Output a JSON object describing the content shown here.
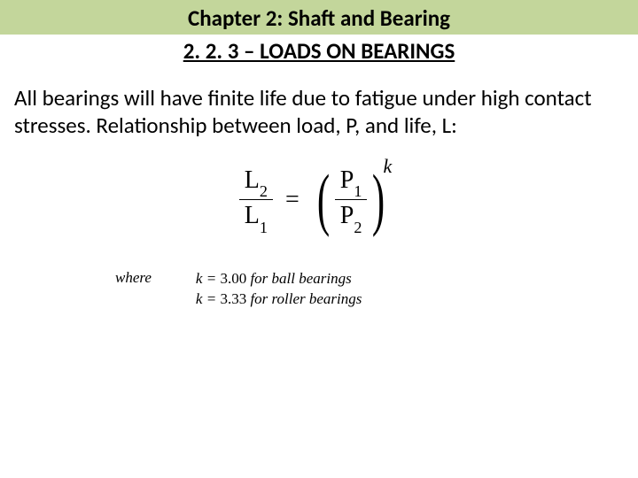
{
  "header": {
    "chapter_title": "Chapter 2:  Shaft and Bearing",
    "section_title": "2. 2. 3 – LOADS ON BEARINGS"
  },
  "body": {
    "paragraph": "All bearings will have finite life due to fatigue under high contact stresses. Relationship between load, P, and life, L:"
  },
  "equation": {
    "left_num": "L",
    "left_num_sub": "2",
    "left_den": "L",
    "left_den_sub": "1",
    "right_num": "P",
    "right_num_sub": "1",
    "right_den": "P",
    "right_den_sub": "2",
    "exponent": "k",
    "equals": "="
  },
  "where": {
    "label": "where",
    "line1_k": "k = ",
    "line1_val": "3.00 ",
    "line1_text": "for ball bearings",
    "line2_k": "k = ",
    "line2_val": "3.33 ",
    "line2_text": "for roller bearings"
  },
  "colors": {
    "header_bg": "#c3d69b",
    "page_bg": "#ffffff",
    "text": "#000000"
  }
}
